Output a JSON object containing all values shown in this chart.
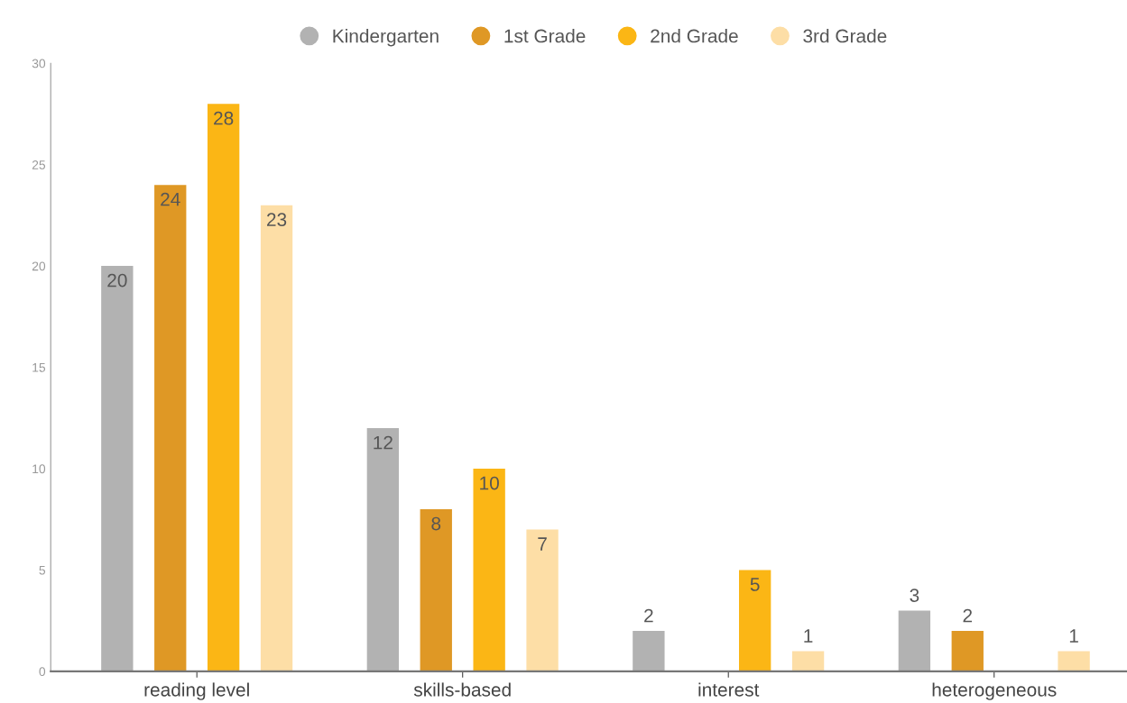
{
  "chart_data": {
    "type": "bar",
    "categories": [
      "reading level",
      "skills-based",
      "interest",
      "heterogeneous"
    ],
    "series": [
      {
        "name": "Kindergarten",
        "color": "#b2b2b2",
        "values": [
          20,
          12,
          2,
          3
        ]
      },
      {
        "name": "1st Grade",
        "color": "#df9825",
        "values": [
          24,
          8,
          null,
          2
        ]
      },
      {
        "name": "2nd Grade",
        "color": "#fbb615",
        "values": [
          28,
          10,
          5,
          null
        ]
      },
      {
        "name": "3rd Grade",
        "color": "#fddea6",
        "values": [
          23,
          7,
          1,
          1
        ]
      }
    ],
    "ylim": [
      0,
      30
    ],
    "yticks": [
      0,
      5,
      10,
      15,
      20,
      25,
      30
    ],
    "data_labels": true,
    "legend": "top",
    "grid": false
  }
}
